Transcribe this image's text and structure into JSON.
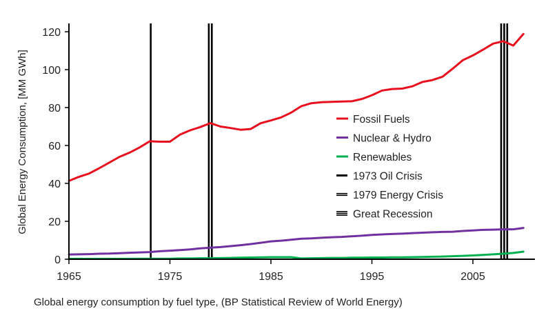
{
  "chart_data": {
    "type": "line",
    "title": "",
    "caption": "Global energy consumption by fuel type, (BP Statistical Review of World Energy)",
    "xlabel": "",
    "ylabel": "Global Energy Consumption, [MM GWh]",
    "xlim": [
      1965,
      2010
    ],
    "ylim": [
      0,
      125
    ],
    "x_ticks": [
      1965,
      1975,
      1985,
      1995,
      2005
    ],
    "y_ticks": [
      0,
      20,
      40,
      60,
      80,
      100,
      120
    ],
    "grid": false,
    "legend_position": "center-right",
    "x": [
      1965,
      1966,
      1967,
      1968,
      1969,
      1970,
      1971,
      1972,
      1973,
      1974,
      1975,
      1976,
      1977,
      1978,
      1979,
      1980,
      1981,
      1982,
      1983,
      1984,
      1985,
      1986,
      1987,
      1988,
      1989,
      1990,
      1991,
      1992,
      1993,
      1994,
      1995,
      1996,
      1997,
      1998,
      1999,
      2000,
      2001,
      2002,
      2003,
      2004,
      2005,
      2006,
      2007,
      2008,
      2009,
      2010
    ],
    "series": [
      {
        "name": "Fossil Fuels",
        "color": "#e8101e",
        "values": [
          41.3,
          43.5,
          45.2,
          48.0,
          51.0,
          54.0,
          56.2,
          59.0,
          62.2,
          62.0,
          62.0,
          65.7,
          68.0,
          69.7,
          71.8,
          70.0,
          69.2,
          68.3,
          68.7,
          71.8,
          73.2,
          74.8,
          77.3,
          80.7,
          82.3,
          82.8,
          83.0,
          83.2,
          83.3,
          84.5,
          86.5,
          89.0,
          89.8,
          90.0,
          91.2,
          93.5,
          94.5,
          96.3,
          100.5,
          105.0,
          107.5,
          110.5,
          113.7,
          115.0,
          112.7,
          118.8
        ]
      },
      {
        "name": "Nuclear & Hydro",
        "color": "#7030a0",
        "values": [
          2.5,
          2.6,
          2.7,
          2.9,
          3.0,
          3.2,
          3.4,
          3.6,
          3.8,
          4.2,
          4.5,
          4.8,
          5.2,
          5.7,
          6.1,
          6.4,
          6.9,
          7.4,
          8.0,
          8.7,
          9.4,
          9.8,
          10.3,
          10.8,
          11.0,
          11.3,
          11.6,
          11.8,
          12.1,
          12.4,
          12.8,
          13.1,
          13.3,
          13.5,
          13.8,
          14.0,
          14.2,
          14.4,
          14.5,
          14.9,
          15.2,
          15.5,
          15.6,
          15.8,
          15.8,
          16.5
        ]
      },
      {
        "name": "Renewables",
        "color": "#00b050",
        "values": [
          0.2,
          0.2,
          0.2,
          0.2,
          0.2,
          0.2,
          0.2,
          0.3,
          0.3,
          0.3,
          0.3,
          0.4,
          0.4,
          0.5,
          0.5,
          0.6,
          0.7,
          0.8,
          0.9,
          1.0,
          1.1,
          1.1,
          1.1,
          0.4,
          0.5,
          0.6,
          0.7,
          0.7,
          0.8,
          0.8,
          0.9,
          0.9,
          1.0,
          1.0,
          1.1,
          1.2,
          1.3,
          1.4,
          1.6,
          1.8,
          2.0,
          2.3,
          2.6,
          2.9,
          3.3,
          4.0
        ]
      }
    ],
    "event_markers": [
      {
        "name": "1973 Oil Crisis",
        "lines": [
          1973.1
        ],
        "color": "#000000"
      },
      {
        "name": "1979 Energy Crisis",
        "lines": [
          1978.85,
          1979.15
        ],
        "color": "#000000"
      },
      {
        "name": "Great Recession",
        "lines": [
          2007.8,
          2008.1,
          2008.4
        ],
        "color": "#000000"
      }
    ]
  }
}
